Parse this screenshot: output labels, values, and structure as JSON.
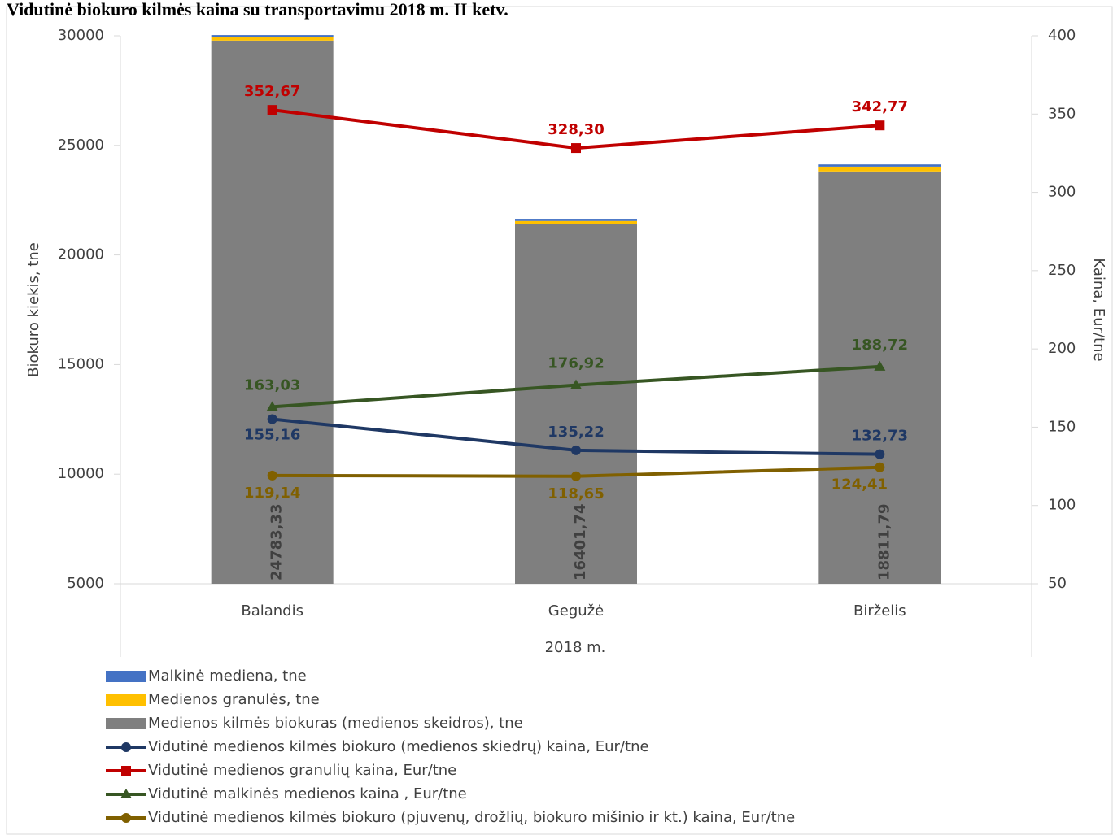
{
  "chart_data": {
    "type": "bar",
    "title": "Vidutinė biokuro kilmės kaina su transportavimu 2018 m. II ketv.",
    "x_label": "2018 m.",
    "y_label": "Biokuro kiekis, tne",
    "y2_label": "Kaina, Eur/tne",
    "categories": [
      "Balandis",
      "Gegužė",
      "Birželis"
    ],
    "ylim": [
      5000,
      30000
    ],
    "yticks": [
      5000,
      10000,
      15000,
      20000,
      25000,
      30000
    ],
    "y2lim": [
      50,
      400
    ],
    "y2ticks": [
      50,
      100,
      150,
      200,
      250,
      300,
      350,
      400
    ],
    "series": [
      {
        "name": "Malkinė mediena, tne",
        "type": "bar",
        "color": "#4472c4",
        "values": [
          100,
          100,
          100
        ]
      },
      {
        "name": "Medienos granulės, tne",
        "type": "bar",
        "color": "#ffc000",
        "values": [
          150,
          150,
          220
        ]
      },
      {
        "name": "Medienos kilmės biokuras (medienos skeidros),  tne",
        "type": "bar",
        "color": "#7f7f7f",
        "values": [
          24783.33,
          16401.74,
          18811.79
        ],
        "value_labels": [
          "24783,33",
          "16401,74",
          "18811,79"
        ]
      },
      {
        "name": "Vidutinė medienos kilmės biokuro (medienos skiedrų) kaina, Eur/tne",
        "type": "line",
        "axis": "y2",
        "color": "#1f3864",
        "marker": "circle",
        "values": [
          155.16,
          135.22,
          132.73
        ],
        "value_labels": [
          "155,16",
          "135,22",
          "132,73"
        ]
      },
      {
        "name": "Vidutinė medienos granulių  kaina, Eur/tne",
        "type": "line",
        "axis": "y2",
        "color": "#c00000",
        "marker": "square",
        "values": [
          352.67,
          328.3,
          342.77
        ],
        "value_labels": [
          "352,67",
          "328,30",
          "342,77"
        ]
      },
      {
        "name": "Vidutinė malkinės medienos kaina , Eur/tne",
        "type": "line",
        "axis": "y2",
        "color": "#375623",
        "marker": "triangle",
        "values": [
          163.03,
          176.92,
          188.72
        ],
        "value_labels": [
          "163,03",
          "176,92",
          "188,72"
        ]
      },
      {
        "name": "Vidutinė medienos kilmės biokuro (pjuvenų, drožlių, biokuro mišinio ir kt.) kaina, Eur/tne",
        "type": "line",
        "axis": "y2",
        "color": "#806000",
        "marker": "circle",
        "values": [
          119.14,
          118.65,
          124.41
        ],
        "value_labels": [
          "119,14",
          "118,65",
          "124,41"
        ]
      }
    ]
  }
}
